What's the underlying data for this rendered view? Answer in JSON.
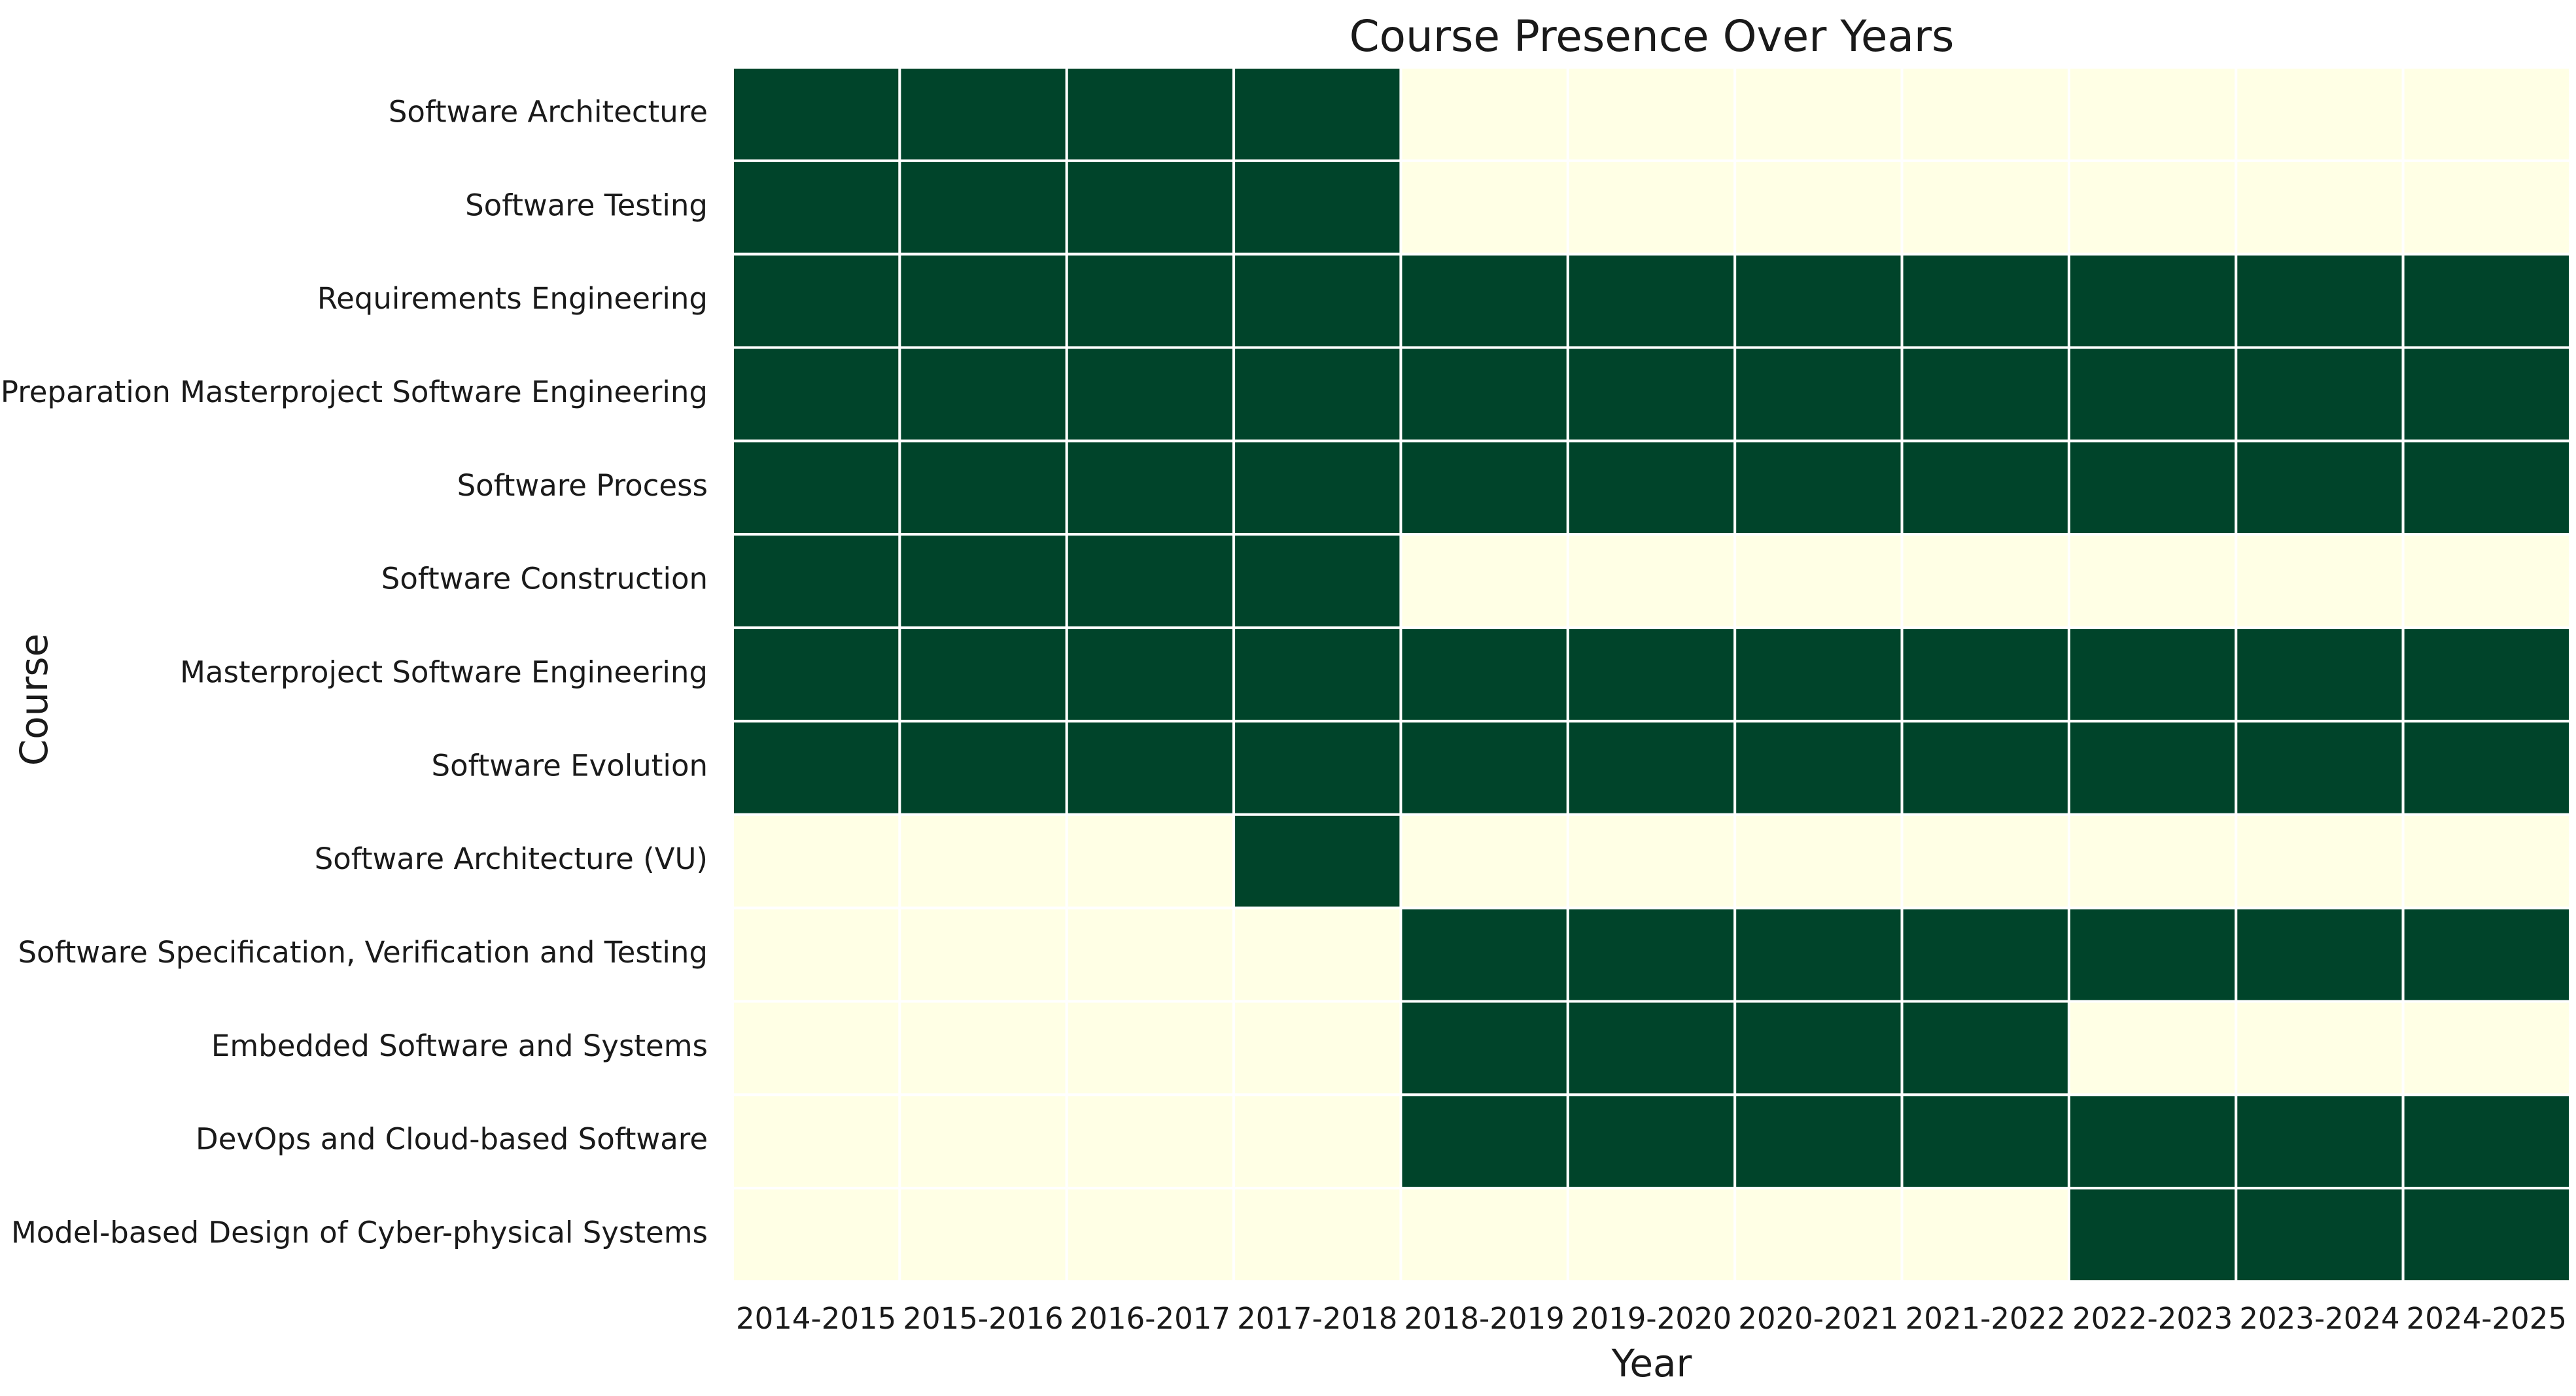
{
  "chart_data": {
    "type": "heatmap",
    "title": "Course Presence Over Years",
    "xlabel": "Year",
    "ylabel": "Course",
    "x": [
      "2014-2015",
      "2015-2016",
      "2016-2017",
      "2017-2018",
      "2018-2019",
      "2019-2020",
      "2020-2021",
      "2021-2022",
      "2022-2023",
      "2023-2024",
      "2024-2025"
    ],
    "y": [
      "Software Architecture",
      "Software Testing",
      "Requirements Engineering",
      "Preparation Masterproject Software Engineering",
      "Software Process",
      "Software Construction",
      "Masterproject Software Engineering",
      "Software Evolution",
      "Software Architecture (VU)",
      "Software Specification, Verification and Testing",
      "Embedded Software and Systems",
      "DevOps and Cloud-based Software",
      "Model-based Design of Cyber-physical Systems"
    ],
    "values": [
      [
        1,
        1,
        1,
        1,
        0,
        0,
        0,
        0,
        0,
        0,
        0
      ],
      [
        1,
        1,
        1,
        1,
        0,
        0,
        0,
        0,
        0,
        0,
        0
      ],
      [
        1,
        1,
        1,
        1,
        1,
        1,
        1,
        1,
        1,
        1,
        1
      ],
      [
        1,
        1,
        1,
        1,
        1,
        1,
        1,
        1,
        1,
        1,
        1
      ],
      [
        1,
        1,
        1,
        1,
        1,
        1,
        1,
        1,
        1,
        1,
        1
      ],
      [
        1,
        1,
        1,
        1,
        0,
        0,
        0,
        0,
        0,
        0,
        0
      ],
      [
        1,
        1,
        1,
        1,
        1,
        1,
        1,
        1,
        1,
        1,
        1
      ],
      [
        1,
        1,
        1,
        1,
        1,
        1,
        1,
        1,
        1,
        1,
        1
      ],
      [
        0,
        0,
        0,
        1,
        0,
        0,
        0,
        0,
        0,
        0,
        0
      ],
      [
        0,
        0,
        0,
        0,
        1,
        1,
        1,
        1,
        1,
        1,
        1
      ],
      [
        0,
        0,
        0,
        0,
        1,
        1,
        1,
        1,
        0,
        0,
        0
      ],
      [
        0,
        0,
        0,
        0,
        1,
        1,
        1,
        1,
        1,
        1,
        1
      ],
      [
        0,
        0,
        0,
        0,
        0,
        0,
        0,
        0,
        1,
        1,
        1
      ]
    ],
    "colors": {
      "present": "#00442a",
      "absent": "#ffffe5",
      "grid": "#ffffff"
    },
    "grid": true,
    "legend": "none"
  }
}
